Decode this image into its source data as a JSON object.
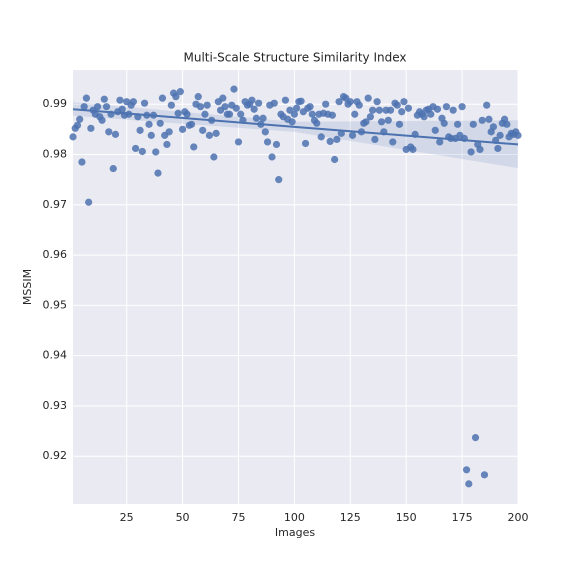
{
  "chart_data": {
    "type": "scatter",
    "title": "Multi-Scale Structure Similarity Index",
    "x_label": "Images",
    "y_label": "MSSIM",
    "xlim": [
      1,
      200
    ],
    "ylim": [
      0.9105,
      0.9968
    ],
    "xticks": [
      25,
      50,
      75,
      100,
      125,
      150,
      175,
      200
    ],
    "yticks": [
      0.92,
      0.93,
      0.94,
      0.95,
      0.96,
      0.97,
      0.98,
      0.99
    ],
    "grid": true,
    "color": "#4c72b0",
    "series": [
      {
        "name": "MSSIM",
        "color": "#4c72b0",
        "x": [
          1,
          2,
          3,
          4,
          5,
          6,
          7,
          8,
          9,
          10,
          11,
          12,
          13,
          14,
          15,
          16,
          17,
          18,
          19,
          20,
          21,
          22,
          23,
          24,
          25,
          26,
          27,
          28,
          29,
          30,
          31,
          32,
          33,
          34,
          35,
          36,
          37,
          38,
          39,
          40,
          41,
          42,
          43,
          44,
          45,
          46,
          47,
          48,
          49,
          50,
          51,
          52,
          53,
          54,
          55,
          56,
          57,
          58,
          59,
          60,
          61,
          62,
          63,
          64,
          65,
          66,
          67,
          68,
          69,
          70,
          71,
          72,
          73,
          74,
          75,
          76,
          77,
          78,
          79,
          80,
          81,
          82,
          83,
          84,
          85,
          86,
          87,
          88,
          89,
          90,
          91,
          92,
          93,
          94,
          95,
          96,
          97,
          98,
          99,
          100,
          101,
          102,
          103,
          104,
          105,
          106,
          107,
          108,
          109,
          110,
          111,
          112,
          113,
          114,
          115,
          116,
          117,
          118,
          119,
          120,
          121,
          122,
          123,
          124,
          125,
          126,
          127,
          128,
          129,
          130,
          131,
          132,
          133,
          134,
          135,
          136,
          137,
          138,
          139,
          140,
          141,
          142,
          143,
          144,
          145,
          146,
          147,
          148,
          149,
          150,
          151,
          152,
          153,
          154,
          155,
          156,
          157,
          158,
          159,
          160,
          161,
          162,
          163,
          164,
          165,
          166,
          167,
          168,
          169,
          170,
          171,
          172,
          173,
          174,
          175,
          176,
          177,
          178,
          179,
          180,
          181,
          182,
          183,
          184,
          185,
          186,
          187,
          188,
          189,
          190,
          191,
          192,
          193,
          194,
          195,
          196,
          197,
          198,
          199,
          200
        ],
        "values": [
          0.9835,
          0.9852,
          0.9858,
          0.987,
          0.9785,
          0.9895,
          0.9912,
          0.9705,
          0.9852,
          0.9888,
          0.988,
          0.9895,
          0.9875,
          0.9868,
          0.991,
          0.9895,
          0.9845,
          0.988,
          0.9772,
          0.984,
          0.9885,
          0.9908,
          0.989,
          0.9878,
          0.9905,
          0.988,
          0.9898,
          0.9905,
          0.9812,
          0.9875,
          0.9848,
          0.9806,
          0.9902,
          0.9878,
          0.986,
          0.9838,
          0.9878,
          0.9805,
          0.9763,
          0.9862,
          0.9912,
          0.9838,
          0.982,
          0.9845,
          0.9898,
          0.9922,
          0.9915,
          0.9882,
          0.9925,
          0.985,
          0.9885,
          0.988,
          0.9858,
          0.986,
          0.9815,
          0.99,
          0.9915,
          0.9895,
          0.9848,
          0.988,
          0.9898,
          0.9838,
          0.9868,
          0.9795,
          0.9842,
          0.9905,
          0.9888,
          0.9912,
          0.9895,
          0.988,
          0.988,
          0.9898,
          0.993,
          0.9892,
          0.9825,
          0.988,
          0.9868,
          0.9905,
          0.9898,
          0.99,
          0.9908,
          0.989,
          0.9872,
          0.9902,
          0.986,
          0.9872,
          0.9845,
          0.9825,
          0.9898,
          0.9795,
          0.9902,
          0.982,
          0.975,
          0.988,
          0.9875,
          0.9908,
          0.987,
          0.9888,
          0.9865,
          0.988,
          0.9892,
          0.9905,
          0.9906,
          0.9885,
          0.9822,
          0.9892,
          0.9895,
          0.988,
          0.9868,
          0.9862,
          0.988,
          0.9835,
          0.9882,
          0.99,
          0.988,
          0.9826,
          0.9878,
          0.979,
          0.983,
          0.9905,
          0.9842,
          0.9915,
          0.9912,
          0.99,
          0.9905,
          0.9838,
          0.988,
          0.9905,
          0.9898,
          0.9845,
          0.9862,
          0.9865,
          0.9912,
          0.9875,
          0.9888,
          0.983,
          0.9905,
          0.9888,
          0.9865,
          0.9845,
          0.9888,
          0.9868,
          0.9888,
          0.9825,
          0.9902,
          0.9898,
          0.986,
          0.9885,
          0.9905,
          0.981,
          0.9892,
          0.9815,
          0.981,
          0.984,
          0.9878,
          0.9885,
          0.988,
          0.9875,
          0.9888,
          0.989,
          0.988,
          0.9895,
          0.9848,
          0.989,
          0.9825,
          0.9872,
          0.9862,
          0.9895,
          0.9835,
          0.9832,
          0.9888,
          0.9832,
          0.986,
          0.9838,
          0.9895,
          0.9832,
          0.9173,
          0.9145,
          0.9805,
          0.986,
          0.9237,
          0.982,
          0.981,
          0.9868,
          0.9163,
          0.9898,
          0.987,
          0.9845,
          0.9855,
          0.9828,
          0.9812,
          0.9838,
          0.9862,
          0.987,
          0.986,
          0.9835,
          0.9842,
          0.984,
          0.9845,
          0.9838
        ]
      }
    ],
    "fit": {
      "color": "#4c72b0",
      "x": [
        1,
        100,
        200
      ],
      "values": [
        0.989,
        0.9855,
        0.982
      ],
      "ci_upper": [
        0.9904,
        0.9865,
        0.9868
      ],
      "ci_lower": [
        0.9877,
        0.9845,
        0.9773
      ]
    }
  }
}
